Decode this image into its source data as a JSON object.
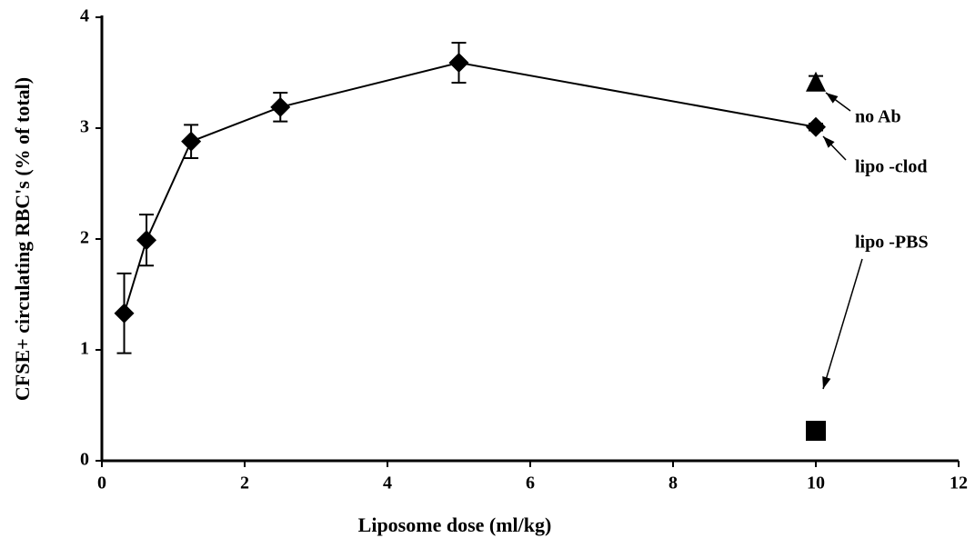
{
  "chart_data": {
    "type": "scatter",
    "xlabel": "Liposome dose (ml/kg)",
    "ylabel": "CFSE+ circulating   RBC's (% of total)",
    "xlim": [
      0,
      12
    ],
    "xticks": [
      0,
      2,
      4,
      6,
      8,
      10,
      12
    ],
    "ylim": [
      0,
      4
    ],
    "yticks": [
      0,
      1,
      2,
      3,
      4
    ],
    "color": "#000000",
    "series": [
      {
        "marker": "diamond",
        "line": true,
        "x": [
          0.3125,
          0.625,
          1.25,
          2.5,
          5,
          10
        ],
        "values": [
          1.33,
          1.99,
          2.88,
          3.19,
          3.59,
          3.01
        ],
        "errors": [
          0.36,
          0.23,
          0.15,
          0.13,
          0.18,
          0.03
        ]
      },
      {
        "marker": "triangle",
        "line": false,
        "x": [
          10
        ],
        "values": [
          3.42
        ],
        "errors": [
          0.05
        ]
      },
      {
        "marker": "square",
        "line": false,
        "x": [
          10
        ],
        "values": [
          0.27
        ],
        "errors": [
          0
        ]
      }
    ],
    "annotations": [
      "no  Ab",
      "lipo -clod",
      "lipo -PBS"
    ]
  }
}
